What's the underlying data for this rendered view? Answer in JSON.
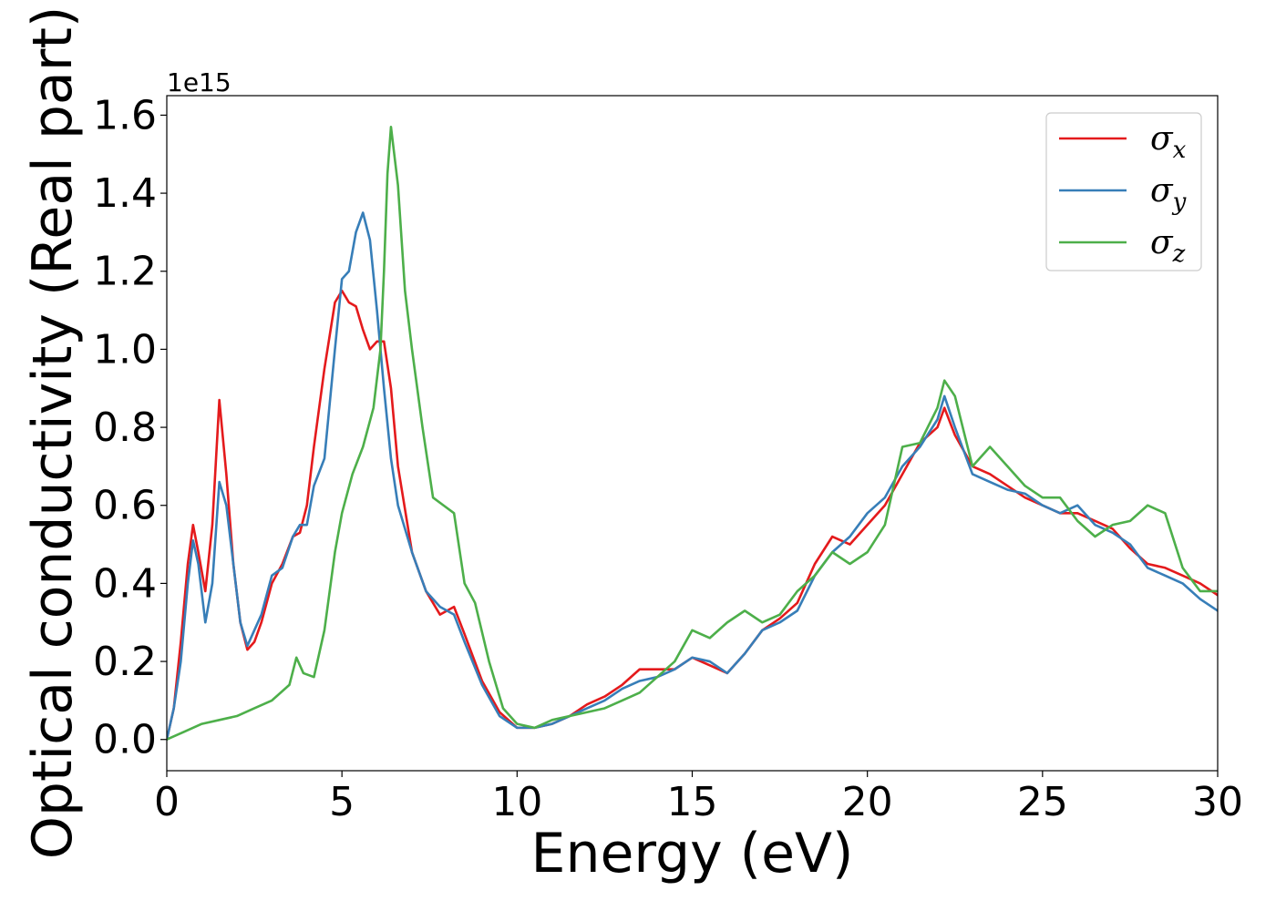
{
  "chart_data": {
    "type": "line",
    "xlabel": "Energy (eV)",
    "ylabel": "Optical conductivity (Real part)",
    "offset_label": "1e15",
    "xlim": [
      0,
      30
    ],
    "ylim": [
      -0.08,
      1.65
    ],
    "xticks": [
      0,
      5,
      10,
      15,
      20,
      25,
      30
    ],
    "xtick_labels": [
      "0",
      "5",
      "10",
      "15",
      "20",
      "25",
      "30"
    ],
    "yticks": [
      0.0,
      0.2,
      0.4,
      0.6,
      0.8,
      1.0,
      1.2,
      1.4,
      1.6
    ],
    "ytick_labels": [
      "0.0",
      "0.2",
      "0.4",
      "0.6",
      "0.8",
      "1.0",
      "1.2",
      "1.4",
      "1.6"
    ],
    "grid": false,
    "legend_position": "top-right",
    "series": [
      {
        "name": "σx",
        "legend_base": "σ",
        "legend_sub": "x",
        "color": "#e41a1c",
        "x": [
          0,
          0.2,
          0.4,
          0.6,
          0.75,
          0.9,
          1.1,
          1.3,
          1.5,
          1.7,
          1.9,
          2.1,
          2.3,
          2.5,
          2.7,
          3.0,
          3.3,
          3.6,
          3.8,
          4.0,
          4.2,
          4.5,
          4.8,
          5.0,
          5.2,
          5.4,
          5.6,
          5.8,
          6.0,
          6.2,
          6.4,
          6.6,
          7.0,
          7.4,
          7.8,
          8.0,
          8.2,
          8.5,
          9.0,
          9.5,
          10.0,
          10.5,
          11.0,
          11.5,
          12.0,
          12.5,
          13.0,
          13.5,
          14.0,
          14.5,
          15.0,
          15.5,
          16.0,
          16.5,
          17.0,
          17.5,
          18.0,
          18.5,
          19.0,
          19.5,
          20.0,
          20.5,
          21.0,
          21.5,
          22.0,
          22.2,
          22.5,
          23.0,
          23.5,
          24.0,
          24.5,
          25.0,
          25.5,
          26.0,
          26.5,
          27.0,
          27.5,
          28.0,
          28.5,
          29.0,
          29.5,
          30.0
        ],
        "y": [
          0.0,
          0.08,
          0.25,
          0.45,
          0.55,
          0.48,
          0.38,
          0.55,
          0.87,
          0.68,
          0.45,
          0.3,
          0.23,
          0.25,
          0.3,
          0.4,
          0.45,
          0.52,
          0.53,
          0.6,
          0.75,
          0.95,
          1.12,
          1.15,
          1.12,
          1.11,
          1.05,
          1.0,
          1.02,
          1.02,
          0.9,
          0.7,
          0.48,
          0.38,
          0.32,
          0.33,
          0.34,
          0.27,
          0.15,
          0.07,
          0.03,
          0.03,
          0.04,
          0.06,
          0.09,
          0.11,
          0.14,
          0.18,
          0.18,
          0.18,
          0.21,
          0.19,
          0.17,
          0.22,
          0.28,
          0.31,
          0.35,
          0.45,
          0.52,
          0.5,
          0.55,
          0.6,
          0.68,
          0.76,
          0.8,
          0.85,
          0.78,
          0.7,
          0.68,
          0.65,
          0.62,
          0.6,
          0.58,
          0.58,
          0.56,
          0.54,
          0.49,
          0.45,
          0.44,
          0.42,
          0.4,
          0.37
        ]
      },
      {
        "name": "σy",
        "legend_base": "σ",
        "legend_sub": "y",
        "color": "#377eb8",
        "x": [
          0,
          0.2,
          0.4,
          0.6,
          0.75,
          0.9,
          1.1,
          1.3,
          1.5,
          1.7,
          1.9,
          2.1,
          2.3,
          2.5,
          2.7,
          3.0,
          3.3,
          3.6,
          3.8,
          4.0,
          4.2,
          4.5,
          4.8,
          5.0,
          5.2,
          5.4,
          5.6,
          5.8,
          6.0,
          6.2,
          6.4,
          6.6,
          7.0,
          7.4,
          7.8,
          8.0,
          8.2,
          8.5,
          9.0,
          9.5,
          10.0,
          10.5,
          11.0,
          11.5,
          12.0,
          12.5,
          13.0,
          13.5,
          14.0,
          14.5,
          15.0,
          15.5,
          16.0,
          16.5,
          17.0,
          17.5,
          18.0,
          18.5,
          19.0,
          19.5,
          20.0,
          20.5,
          21.0,
          21.5,
          22.0,
          22.2,
          22.5,
          23.0,
          23.5,
          24.0,
          24.5,
          25.0,
          25.5,
          26.0,
          26.5,
          27.0,
          27.5,
          28.0,
          28.5,
          29.0,
          29.5,
          30.0
        ],
        "y": [
          0.0,
          0.08,
          0.2,
          0.4,
          0.51,
          0.45,
          0.3,
          0.4,
          0.66,
          0.6,
          0.45,
          0.3,
          0.24,
          0.28,
          0.32,
          0.42,
          0.44,
          0.52,
          0.55,
          0.55,
          0.65,
          0.72,
          1.0,
          1.18,
          1.2,
          1.3,
          1.35,
          1.28,
          1.1,
          0.9,
          0.72,
          0.6,
          0.48,
          0.38,
          0.34,
          0.33,
          0.32,
          0.25,
          0.14,
          0.06,
          0.03,
          0.03,
          0.04,
          0.06,
          0.08,
          0.1,
          0.13,
          0.15,
          0.16,
          0.18,
          0.21,
          0.2,
          0.17,
          0.22,
          0.28,
          0.3,
          0.33,
          0.42,
          0.48,
          0.52,
          0.58,
          0.62,
          0.7,
          0.75,
          0.82,
          0.88,
          0.8,
          0.68,
          0.66,
          0.64,
          0.63,
          0.6,
          0.58,
          0.6,
          0.55,
          0.53,
          0.5,
          0.44,
          0.42,
          0.4,
          0.36,
          0.33
        ]
      },
      {
        "name": "σz",
        "legend_base": "σ",
        "legend_sub": "z",
        "color": "#4daf4a",
        "x": [
          0,
          0.5,
          1.0,
          1.5,
          2.0,
          2.5,
          3.0,
          3.5,
          3.7,
          3.9,
          4.2,
          4.5,
          4.8,
          5.0,
          5.3,
          5.6,
          5.9,
          6.1,
          6.2,
          6.3,
          6.4,
          6.6,
          6.8,
          7.0,
          7.3,
          7.6,
          7.9,
          8.2,
          8.5,
          8.8,
          9.2,
          9.6,
          10.0,
          10.5,
          11.0,
          11.5,
          12.0,
          12.5,
          13.0,
          13.5,
          14.0,
          14.5,
          15.0,
          15.5,
          16.0,
          16.5,
          17.0,
          17.5,
          18.0,
          18.5,
          19.0,
          19.5,
          20.0,
          20.5,
          21.0,
          21.5,
          22.0,
          22.2,
          22.5,
          23.0,
          23.5,
          24.0,
          24.5,
          25.0,
          25.5,
          26.0,
          26.5,
          27.0,
          27.5,
          28.0,
          28.5,
          29.0,
          29.5,
          30.0
        ],
        "y": [
          0.0,
          0.02,
          0.04,
          0.05,
          0.06,
          0.08,
          0.1,
          0.14,
          0.21,
          0.17,
          0.16,
          0.28,
          0.48,
          0.58,
          0.68,
          0.75,
          0.85,
          1.0,
          1.2,
          1.45,
          1.57,
          1.42,
          1.15,
          1.0,
          0.8,
          0.62,
          0.6,
          0.58,
          0.4,
          0.35,
          0.2,
          0.08,
          0.04,
          0.03,
          0.05,
          0.06,
          0.07,
          0.08,
          0.1,
          0.12,
          0.16,
          0.2,
          0.28,
          0.26,
          0.3,
          0.33,
          0.3,
          0.32,
          0.38,
          0.42,
          0.48,
          0.45,
          0.48,
          0.55,
          0.75,
          0.76,
          0.85,
          0.92,
          0.88,
          0.7,
          0.75,
          0.7,
          0.65,
          0.62,
          0.62,
          0.56,
          0.52,
          0.55,
          0.56,
          0.6,
          0.58,
          0.44,
          0.38,
          0.38
        ]
      }
    ]
  }
}
